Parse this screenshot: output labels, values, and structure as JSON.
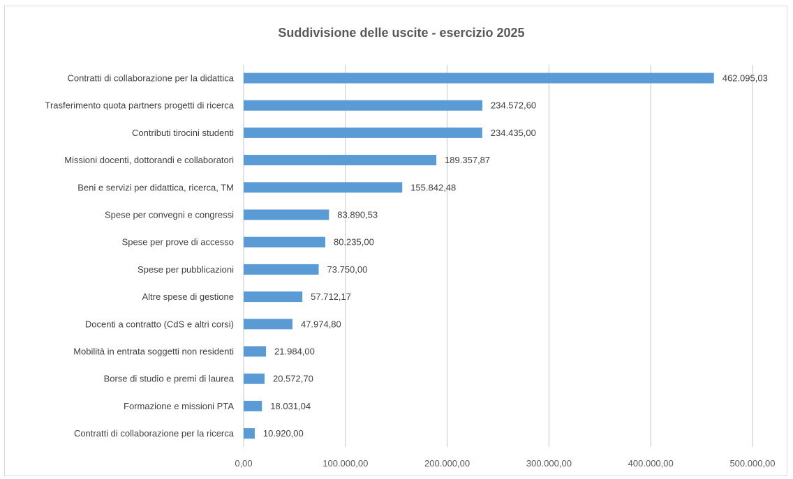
{
  "chart_data": {
    "type": "bar",
    "orientation": "horizontal",
    "title": "Suddivisione delle uscite - esercizio 2025",
    "categories": [
      "Contratti di collaborazione per la didattica",
      "Trasferimento quota partners progetti di ricerca",
      "Contributi tirocini studenti",
      "Missioni docenti, dottorandi e collaboratori",
      "Beni e servizi per didattica, ricerca, TM",
      "Spese per convegni e congressi",
      "Spese per prove di accesso",
      "Spese per pubblicazioni",
      "Altre spese di gestione",
      "Docenti a contratto (CdS e altri corsi)",
      "Mobilità in entrata soggetti non residenti",
      "Borse di studio e premi di laurea",
      "Formazione e missioni PTA",
      "Contratti di collaborazione per la ricerca"
    ],
    "values": [
      462095.03,
      234572.6,
      234435.0,
      189357.87,
      155842.48,
      83890.53,
      80235.0,
      73750.0,
      57712.17,
      47974.8,
      21984.0,
      20572.7,
      18031.04,
      10920.0
    ],
    "value_labels": [
      "462.095,03",
      "234.572,60",
      "234.435,00",
      "189.357,87",
      "155.842,48",
      "83.890,53",
      "80.235,00",
      "73.750,00",
      "57.712,17",
      "47.974,80",
      "21.984,00",
      "20.572,70",
      "18.031,04",
      "10.920,00"
    ],
    "xlim": [
      0,
      500000
    ],
    "xticks": [
      0,
      100000,
      200000,
      300000,
      400000,
      500000
    ],
    "xtick_labels": [
      "0,00",
      "100.000,00",
      "200.000,00",
      "300.000,00",
      "400.000,00",
      "500.000,00"
    ],
    "xlabel": "",
    "ylabel": "",
    "grid": true,
    "legend": "none",
    "bar_color": "#5b9bd5"
  }
}
